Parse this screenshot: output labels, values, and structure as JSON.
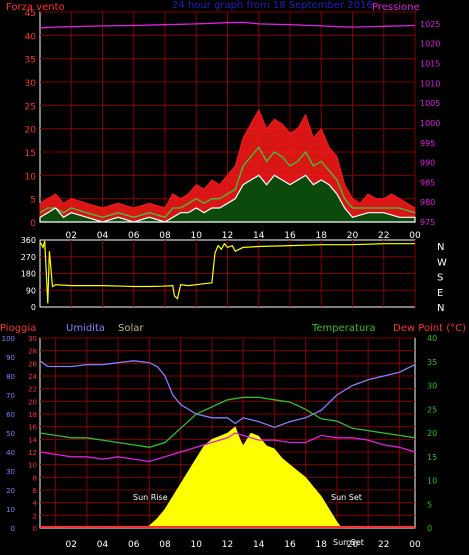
{
  "chart_data": [
    {
      "type": "line",
      "title": "24 hour graph from 18 September 2016",
      "left_label": "Forza vento",
      "right_label": "Pressione",
      "x_ticks": [
        "02",
        "04",
        "06",
        "08",
        "10",
        "12",
        "14",
        "16",
        "18",
        "20",
        "22",
        "00"
      ],
      "x_range": [
        0,
        24
      ],
      "left_ticks": [
        "0",
        "5",
        "10",
        "15",
        "20",
        "25",
        "30",
        "35",
        "40",
        "45"
      ],
      "left_range": [
        0,
        45
      ],
      "right_ticks": [
        "975",
        "980",
        "985",
        "990",
        "995",
        "1000",
        "1005",
        "1010",
        "1015",
        "1020",
        "1025"
      ],
      "right_range": [
        975,
        1028
      ],
      "colors": {
        "gust": "#ff1a1a",
        "avg": "#3cc83c",
        "wind": "#ffffff",
        "pressure": "#e020e0",
        "grid": "#800000",
        "axes": "#ffffff"
      },
      "series": [
        {
          "name": "",
          "color": "#e020e0",
          "axis": "right",
          "x": [
            0,
            1,
            2,
            4,
            6,
            8,
            10,
            12,
            13,
            14,
            16,
            18,
            19,
            20,
            22,
            24
          ],
          "values": [
            1024,
            1024.2,
            1024.3,
            1024.5,
            1024.6,
            1024.8,
            1025,
            1025.3,
            1025.4,
            1025,
            1024.8,
            1024.5,
            1024.3,
            1024.2,
            1024.4,
            1024.6
          ]
        },
        {
          "name": "",
          "color": "#ff1a1a",
          "axis": "left",
          "x": [
            0,
            0.5,
            1,
            1.5,
            2,
            3,
            4,
            5,
            6,
            7,
            8,
            8.5,
            9,
            9.5,
            10,
            10.5,
            11,
            11.5,
            12,
            12.5,
            13,
            13.5,
            14,
            14.5,
            15,
            15.5,
            16,
            16.5,
            17,
            17.5,
            18,
            18.5,
            19,
            19.5,
            20,
            20.5,
            21,
            21.5,
            22,
            22.5,
            23,
            23.5,
            24
          ],
          "values": [
            4,
            5,
            6,
            4,
            5,
            4,
            3,
            4,
            3,
            4,
            3,
            6,
            5,
            6,
            8,
            7,
            9,
            8,
            10,
            12,
            18,
            21,
            24,
            20,
            22,
            21,
            19,
            20,
            23,
            18,
            20,
            16,
            14,
            8,
            5,
            4,
            6,
            5,
            5,
            6,
            5,
            4,
            3
          ]
        },
        {
          "name": "",
          "color": "#3cc83c",
          "axis": "left",
          "x": [
            0,
            0.5,
            1,
            1.5,
            2,
            3,
            4,
            5,
            6,
            7,
            8,
            8.5,
            9,
            9.5,
            10,
            10.5,
            11,
            11.5,
            12,
            12.5,
            13,
            13.5,
            14,
            14.5,
            15,
            15.5,
            16,
            16.5,
            17,
            17.5,
            18,
            18.5,
            19,
            19.5,
            20,
            21,
            22,
            23,
            24
          ],
          "values": [
            2,
            3,
            3,
            2,
            3,
            2,
            1,
            2,
            1,
            2,
            1,
            3,
            3,
            4,
            5,
            4,
            5,
            5,
            6,
            7,
            12,
            14,
            16,
            13,
            15,
            14,
            12,
            13,
            15,
            12,
            13,
            11,
            9,
            5,
            3,
            3,
            3,
            3,
            2
          ]
        },
        {
          "name": "",
          "color": "#ffffff",
          "axis": "left",
          "x": [
            0,
            0.5,
            1,
            1.5,
            2,
            3,
            4,
            5,
            6,
            7,
            8,
            8.5,
            9,
            9.5,
            10,
            10.5,
            11,
            11.5,
            12,
            12.5,
            13,
            13.5,
            14,
            14.5,
            15,
            15.5,
            16,
            16.5,
            17,
            17.5,
            18,
            18.5,
            19,
            19.5,
            20,
            21,
            22,
            23,
            24
          ],
          "values": [
            1,
            2,
            3,
            1,
            2,
            1,
            0,
            1,
            0,
            1,
            0,
            1,
            2,
            2,
            3,
            2,
            3,
            3,
            4,
            5,
            8,
            9,
            10,
            8,
            10,
            9,
            8,
            9,
            10,
            8,
            9,
            8,
            6,
            3,
            1,
            2,
            2,
            1,
            1
          ]
        }
      ]
    },
    {
      "type": "line",
      "title": "",
      "x_ticks": [
        "02",
        "04",
        "06",
        "08",
        "10",
        "12",
        "14",
        "16",
        "18",
        "20",
        "22",
        "00"
      ],
      "x_range": [
        0,
        24
      ],
      "left_ticks": [
        "0",
        "90",
        "180",
        "270",
        "360"
      ],
      "left_range": [
        0,
        360
      ],
      "right_ticks": [
        "N",
        "W",
        "S",
        "E",
        "N"
      ],
      "colors": {
        "line": "#ffff00",
        "grid": "#800000"
      },
      "series": [
        {
          "name": "",
          "color": "#ffff00",
          "x": [
            0,
            0.2,
            0.3,
            0.5,
            0.6,
            0.8,
            1,
            2,
            4,
            6,
            7,
            7.8,
            8.5,
            8.6,
            8.8,
            9,
            9.5,
            10,
            10.5,
            11,
            11.2,
            11.4,
            11.6,
            11.8,
            12,
            12.3,
            12.5,
            13,
            14,
            16,
            18,
            20,
            22,
            24
          ],
          "values": [
            350,
            320,
            355,
            20,
            300,
            110,
            120,
            115,
            115,
            110,
            110,
            112,
            115,
            60,
            45,
            120,
            115,
            120,
            125,
            130,
            290,
            330,
            310,
            340,
            320,
            330,
            300,
            320,
            325,
            330,
            335,
            335,
            340,
            340
          ]
        }
      ]
    },
    {
      "type": "area",
      "title": "",
      "labels": {
        "rain": "Pioggia",
        "humidity": "Umidita",
        "solar": "Solar",
        "temperature": "Temperatura",
        "dewpoint": "Dew Point (°C)"
      },
      "annotations": {
        "sunrise": "Sun Rise",
        "sunset": "Sun Set",
        "sunset_time": "Sun Set"
      },
      "x_ticks": [
        "02",
        "04",
        "06",
        "08",
        "10",
        "12",
        "14",
        "16",
        "18",
        "20",
        "22",
        "00"
      ],
      "x_range": [
        0,
        24
      ],
      "humidity_ticks": [
        "0",
        "10",
        "20",
        "30",
        "40",
        "50",
        "60",
        "70",
        "80",
        "90",
        "100"
      ],
      "rain_ticks": [
        "0",
        "2",
        "4",
        "6",
        "8",
        "10",
        "12",
        "14",
        "16",
        "18",
        "20",
        "22",
        "24",
        "26",
        "28",
        "30"
      ],
      "temp_ticks": [
        "0",
        "5",
        "10",
        "15",
        "20",
        "25",
        "30",
        "35",
        "40"
      ],
      "ranges": {
        "humidity": [
          0,
          100
        ],
        "rain": [
          0,
          30
        ],
        "temperature": [
          0,
          40
        ]
      },
      "colors": {
        "humidity": "#8080ff",
        "rain": "#ff3030",
        "solar": "#ffff00",
        "temperature": "#30c030",
        "dewpoint": "#e020e0",
        "grid": "#800000"
      },
      "series": [
        {
          "name": "Umidita",
          "color": "#8080ff",
          "axis": "humidity",
          "x": [
            0,
            0.5,
            1,
            2,
            3,
            4,
            5,
            6,
            7,
            7.5,
            8,
            8.5,
            9,
            10,
            11,
            12,
            12.5,
            13,
            14,
            15,
            16,
            17,
            18,
            19,
            20,
            21,
            22,
            23,
            24
          ],
          "values": [
            88,
            85,
            85,
            85,
            86,
            86,
            87,
            88,
            87,
            85,
            80,
            70,
            65,
            60,
            58,
            58,
            55,
            58,
            56,
            53,
            56,
            58,
            62,
            70,
            75,
            78,
            80,
            82,
            86
          ]
        },
        {
          "name": "Temperatura",
          "color": "#30c030",
          "axis": "temperature",
          "x": [
            0,
            1,
            2,
            3,
            4,
            5,
            6,
            7,
            8,
            9,
            10,
            11,
            12,
            13,
            14,
            15,
            16,
            17,
            18,
            19,
            20,
            21,
            22,
            23,
            24
          ],
          "values": [
            20,
            19.5,
            19,
            19,
            18.5,
            18,
            17.5,
            17,
            18,
            21,
            24,
            25.5,
            27,
            27.5,
            27.5,
            27,
            26.5,
            25,
            23,
            22.5,
            21,
            20.5,
            20,
            19.5,
            19
          ]
        },
        {
          "name": "Dew Point (°C)",
          "color": "#e020e0",
          "axis": "temperature",
          "x": [
            0,
            1,
            2,
            3,
            4,
            5,
            6,
            7,
            8,
            9,
            10,
            11,
            12,
            12.5,
            13,
            14,
            15,
            16,
            17,
            18,
            19,
            20,
            21,
            22,
            23,
            24
          ],
          "values": [
            16,
            15.5,
            15,
            15,
            14.5,
            15,
            14.5,
            14,
            15,
            16,
            17,
            18,
            19,
            20,
            19.5,
            18.5,
            18.5,
            18,
            18,
            19.5,
            19,
            19,
            18.5,
            17.5,
            17,
            16
          ]
        },
        {
          "name": "Solar",
          "color": "#ffff00",
          "axis": "rain",
          "x": [
            6.8,
            7,
            7.5,
            8,
            8.5,
            9,
            9.5,
            10,
            10.5,
            11,
            11.5,
            12,
            12.5,
            12.8,
            13,
            13.5,
            14,
            14.5,
            15,
            15.5,
            16,
            16.5,
            17,
            17.5,
            18,
            18.5,
            19,
            19.3
          ],
          "values": [
            0,
            0.4,
            1.5,
            3,
            5,
            7,
            9,
            11,
            13,
            14,
            14.5,
            15,
            16,
            14,
            13,
            15,
            14.5,
            13,
            12.5,
            11,
            10,
            9,
            8,
            6.5,
            5,
            3,
            1,
            0
          ]
        },
        {
          "name": "Pioggia",
          "color": "#ff3030",
          "axis": "rain",
          "x": [
            0,
            24
          ],
          "values": [
            0,
            0
          ]
        }
      ]
    }
  ]
}
